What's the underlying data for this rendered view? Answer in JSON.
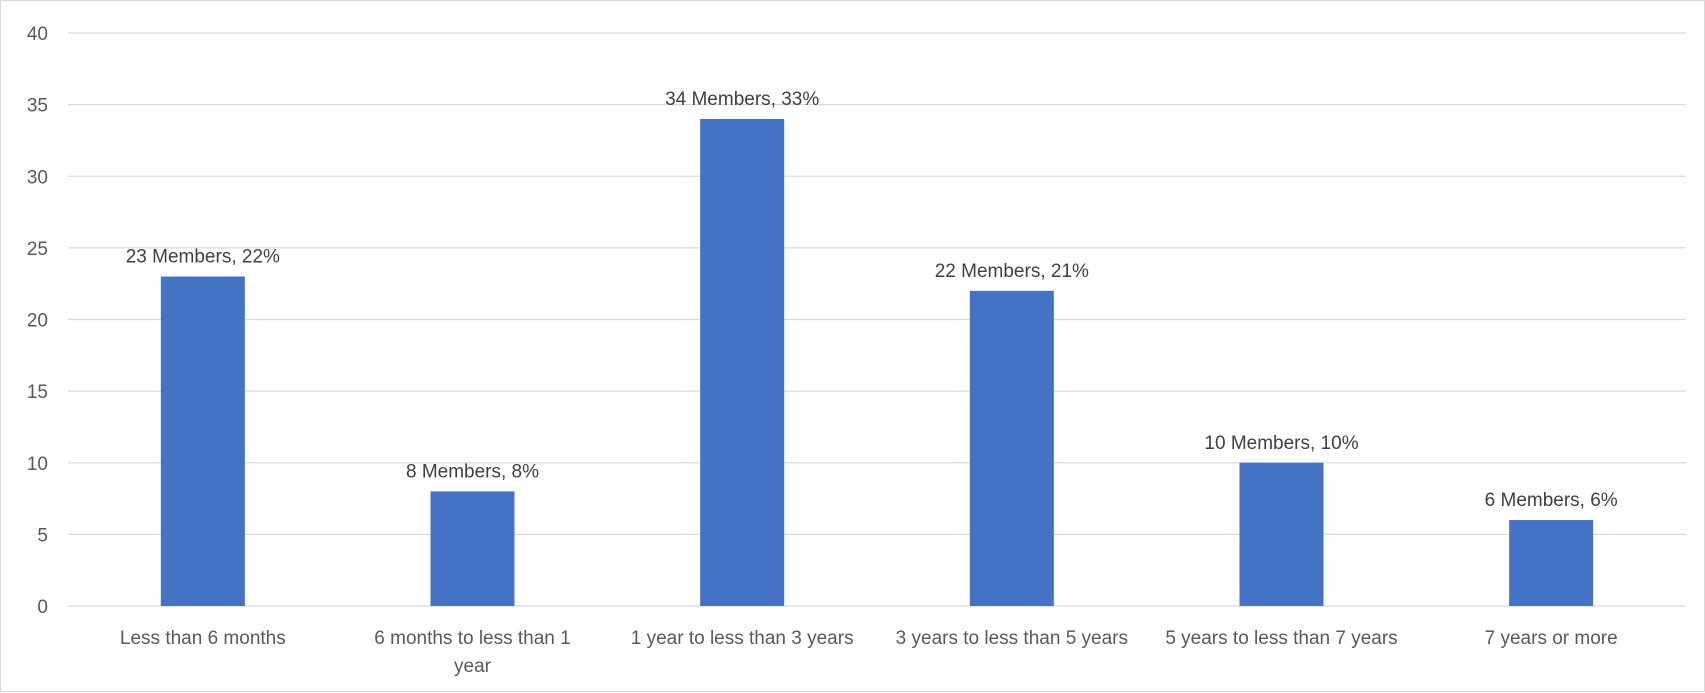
{
  "chart_data": {
    "type": "bar",
    "categories": [
      "Less than 6 months",
      "6 months to less than 1 year",
      "1 year to less than 3 years",
      "3 years to less than 5 years",
      "5 years to less than 7 years",
      "7 years or more"
    ],
    "category_lines": [
      [
        "Less than 6 months"
      ],
      [
        "6 months to less than 1",
        "year"
      ],
      [
        "1 year to less than 3 years"
      ],
      [
        "3 years to less than 5 years"
      ],
      [
        "5 years to less than 7 years"
      ],
      [
        "7 years or more"
      ]
    ],
    "values": [
      23,
      8,
      34,
      22,
      10,
      6
    ],
    "data_labels": [
      "23 Members, 22%",
      "8 Members, 8%",
      "34 Members, 33%",
      "22 Members, 21%",
      "10 Members, 10%",
      "6 Members, 6%"
    ],
    "title": "",
    "xlabel": "",
    "ylabel": "",
    "ylim": [
      0,
      40
    ],
    "yticks": [
      0,
      5,
      10,
      15,
      20,
      25,
      30,
      35,
      40
    ],
    "grid": true,
    "legend": "none",
    "colors": {
      "bar": "#4472c4",
      "grid": "#d9d9d9",
      "axis_text": "#595959",
      "data_label_text": "#404040"
    }
  }
}
